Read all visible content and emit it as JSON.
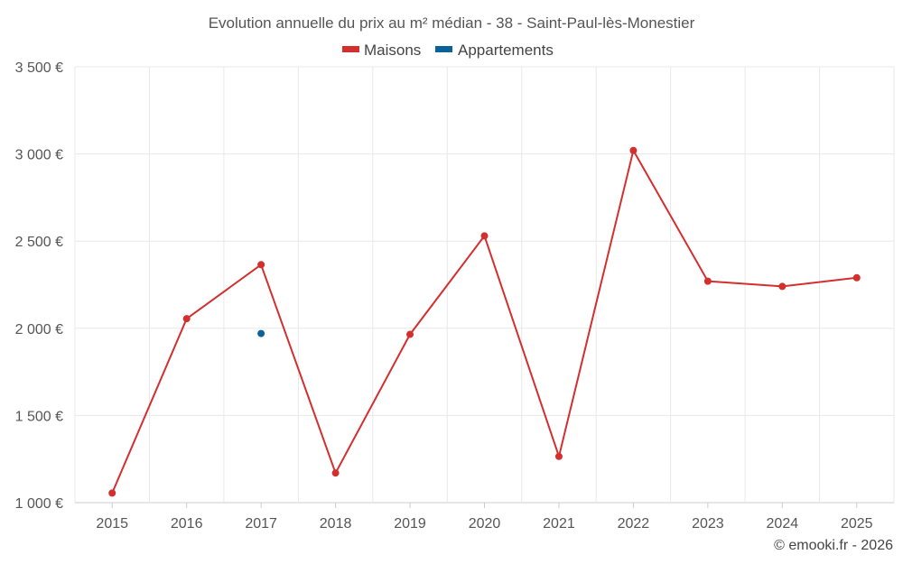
{
  "chart_data": {
    "type": "line",
    "title": "Evolution annuelle du prix au m² médian - 38 - Saint-Paul-lès-Monestier",
    "categories": [
      "2015",
      "2016",
      "2017",
      "2018",
      "2019",
      "2020",
      "2021",
      "2022",
      "2023",
      "2024",
      "2025"
    ],
    "series": [
      {
        "name": "Maisons",
        "color": "#d32f2f",
        "values": [
          1055,
          2055,
          2365,
          1170,
          1965,
          2530,
          1265,
          3020,
          2270,
          2240,
          2290
        ]
      },
      {
        "name": "Appartements",
        "color": "#0a6299",
        "values": [
          null,
          null,
          1970,
          null,
          null,
          null,
          null,
          null,
          null,
          null,
          null
        ]
      }
    ],
    "ylim": [
      1000,
      3500
    ],
    "yticks": [
      1000,
      1500,
      2000,
      2500,
      3000,
      3500
    ],
    "ytick_labels": [
      "1 000 €",
      "1 500 €",
      "2 000 €",
      "2 500 €",
      "3 000 €",
      "3 500 €"
    ],
    "xlabel": "",
    "ylabel": "",
    "legend_position": "top-center",
    "grid": true
  },
  "credit": "© emooki.fr - 2026"
}
